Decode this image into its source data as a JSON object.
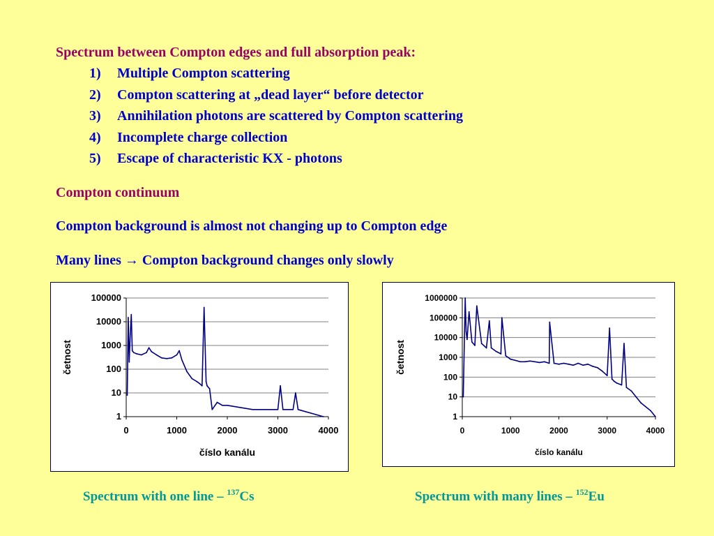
{
  "heading": "Spectrum between Compton edges and full absorption peak:",
  "items": [
    {
      "num": "1)",
      "text": "Multiple Compton scattering"
    },
    {
      "num": "2)",
      "text": "Compton scattering at „dead layer“ before detector"
    },
    {
      "num": "3)",
      "text": "Annihilation photons are scattered by Compton scattering"
    },
    {
      "num": "4)",
      "text": "Incomplete charge collection"
    },
    {
      "num": "5)",
      "text": "Escape of characteristic KX - photons"
    }
  ],
  "compton_continuum": "Compton continuum",
  "line_background": "Compton background is almost not changing up to Compton edge",
  "line_many": "Many lines → Compton background changes only slowly",
  "captions": {
    "left_main": "Spectrum with one line – ",
    "left_sup": "137",
    "left_elem": "Cs",
    "right_main": "Spectrum with many lines – ",
    "right_sup": "152",
    "right_elem": "Eu"
  },
  "colors": {
    "series": "#000080",
    "heading": "#990066",
    "body": "#0000cc",
    "caption": "#009999",
    "background": "#ffff99"
  },
  "chart_data": [
    {
      "type": "line",
      "title": "",
      "xlabel": "číslo kanálu",
      "ylabel": "četnost",
      "y_scale": "log",
      "xlim": [
        0,
        4000
      ],
      "ylim": [
        1,
        100000
      ],
      "x_ticks": [
        "0",
        "1000",
        "2000",
        "3000",
        "4000"
      ],
      "y_ticks": [
        "1",
        "10",
        "100",
        "1000",
        "10000",
        "100000"
      ],
      "grid": "horizontal",
      "series": [
        {
          "x": [
            20,
            40,
            60,
            80,
            100,
            120,
            150,
            200,
            300,
            400,
            450,
            500,
            600,
            700,
            800,
            900,
            1000,
            1050,
            1100,
            1200,
            1300,
            1400,
            1450,
            1500,
            1540,
            1580,
            1600,
            1650,
            1700,
            1800,
            1900,
            2000,
            2500,
            3000,
            3050,
            3100,
            3300,
            3350,
            3400,
            3900
          ],
          "y": [
            8,
            15000,
            200,
            3000,
            20000,
            600,
            500,
            450,
            400,
            500,
            800,
            550,
            400,
            300,
            280,
            300,
            400,
            600,
            250,
            80,
            40,
            30,
            25,
            20,
            40000,
            30,
            20,
            15,
            2,
            4,
            3,
            3,
            2,
            2,
            20,
            2,
            2,
            10,
            2,
            1
          ]
        }
      ]
    },
    {
      "type": "line",
      "title": "",
      "xlabel": "číslo kanálu",
      "ylabel": "četnost",
      "y_scale": "log",
      "xlim": [
        0,
        4000
      ],
      "ylim": [
        1,
        1000000
      ],
      "x_ticks": [
        "0",
        "1000",
        "2000",
        "3000",
        "4000"
      ],
      "y_ticks": [
        "1",
        "10",
        "100",
        "1000",
        "10000",
        "100000",
        "1000000"
      ],
      "grid": "horizontal",
      "series": [
        {
          "x": [
            20,
            60,
            80,
            100,
            140,
            200,
            260,
            300,
            400,
            500,
            560,
            600,
            700,
            800,
            820,
            900,
            1000,
            1100,
            1200,
            1300,
            1400,
            1500,
            1600,
            1700,
            1800,
            1810,
            1900,
            2000,
            2100,
            2200,
            2300,
            2400,
            2500,
            2600,
            2700,
            2800,
            2900,
            3000,
            3050,
            3100,
            3150,
            3200,
            3300,
            3350,
            3400,
            3500,
            3600,
            3700,
            3900,
            4000
          ],
          "y": [
            10,
            1000000,
            20000,
            8000,
            200000,
            6000,
            4000,
            400000,
            5000,
            3000,
            70000,
            3000,
            2000,
            1500,
            100000,
            1200,
            800,
            700,
            600,
            600,
            650,
            600,
            550,
            600,
            500,
            60000,
            500,
            450,
            500,
            450,
            400,
            500,
            400,
            450,
            350,
            300,
            200,
            120,
            30000,
            80,
            60,
            50,
            40,
            5000,
            30,
            20,
            10,
            5,
            2,
            1
          ]
        }
      ]
    }
  ]
}
